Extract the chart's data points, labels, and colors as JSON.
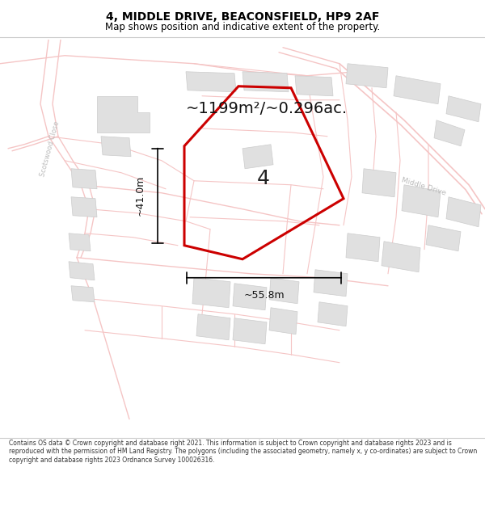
{
  "title": "4, MIDDLE DRIVE, BEACONSFIELD, HP9 2AF",
  "subtitle": "Map shows position and indicative extent of the property.",
  "area_text": "~1199m²/~0.296ac.",
  "label_number": "4",
  "dim_vertical": "~41.0m",
  "dim_horizontal": "~55.8m",
  "footer": "Contains OS data © Crown copyright and database right 2021. This information is subject to Crown copyright and database rights 2023 and is reproduced with the permission of HM Land Registry. The polygons (including the associated geometry, namely x, y co-ordinates) are subject to Crown copyright and database rights 2023 Ordnance Survey 100026316.",
  "map_bg": "#f9f6f4",
  "road_color": "#f5c5c5",
  "polygon_color": "#cc0000",
  "annotation_color": "#000000",
  "title_color": "#000000",
  "street_label_color": "#aaaaaa",
  "road_label_scotswood": "Scotswood Close",
  "road_label_middle": "Middle Drive",
  "building_fill": "#e0e0e0",
  "building_edge": "#cccccc"
}
